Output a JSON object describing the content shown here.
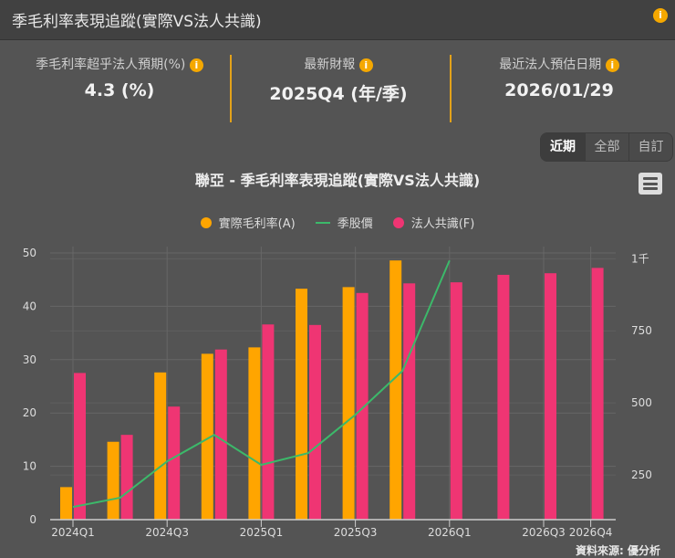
{
  "header": {
    "title": "季毛利率表現追蹤(實際VS法人共識)",
    "info_icon": "info-icon"
  },
  "stats": [
    {
      "label": "季毛利率超乎法人預期(%)",
      "value": "4.3 (%)"
    },
    {
      "label": "最新財報",
      "value": "2025Q4 (年/季)"
    },
    {
      "label": "最近法人預估日期",
      "value": "2026/01/29"
    }
  ],
  "range_buttons": [
    "近期",
    "全部",
    "自訂"
  ],
  "range_selected": "近期",
  "source": "資料來源: 優分析",
  "colors": {
    "actual": "#ffa500",
    "price": "#3cb96a",
    "consensus": "#ef3573",
    "accent": "#f5a800"
  },
  "chart_data": {
    "type": "bar",
    "title": "聯亞 - 季毛利率表現追蹤(實際VS法人共識)",
    "categories": [
      "2024Q1",
      "2024Q2",
      "2024Q3",
      "2024Q4",
      "2025Q1",
      "2025Q2",
      "2025Q3",
      "2025Q4",
      "2026Q1",
      "2026Q2",
      "2026Q3",
      "2026Q4"
    ],
    "x_tick_labels": [
      "2024Q1",
      "2024Q3",
      "2025Q1",
      "2025Q3",
      "2026Q1",
      "2026Q3",
      "2026Q4"
    ],
    "series": [
      {
        "name": "實際毛利率(A)",
        "type": "bar",
        "axis": "left",
        "values": [
          6.1,
          14.6,
          27.6,
          31.1,
          32.3,
          43.3,
          43.6,
          48.6,
          null,
          null,
          null,
          null
        ]
      },
      {
        "name": "季股價",
        "type": "line",
        "axis": "right",
        "values": [
          139,
          171,
          297,
          389,
          285,
          326,
          459,
          611,
          994,
          null,
          null,
          null
        ]
      },
      {
        "name": "法人共識(F)",
        "type": "bar",
        "axis": "left",
        "values": [
          27.5,
          15.9,
          21.2,
          31.9,
          36.6,
          36.5,
          42.5,
          44.3,
          44.5,
          45.9,
          46.2,
          47.2
        ]
      }
    ],
    "y_left": {
      "ylim": [
        0,
        50
      ],
      "ticks": [
        "0",
        "10",
        "20",
        "30",
        "40",
        "50"
      ]
    },
    "y_right": {
      "ylim": [
        95,
        1020
      ],
      "ticks": [
        {
          "v": 250,
          "label": "250"
        },
        {
          "v": 500,
          "label": "500"
        },
        {
          "v": 750,
          "label": "750"
        },
        {
          "v": 1000,
          "label": "1千"
        }
      ]
    },
    "grid": true,
    "legend": "top"
  }
}
